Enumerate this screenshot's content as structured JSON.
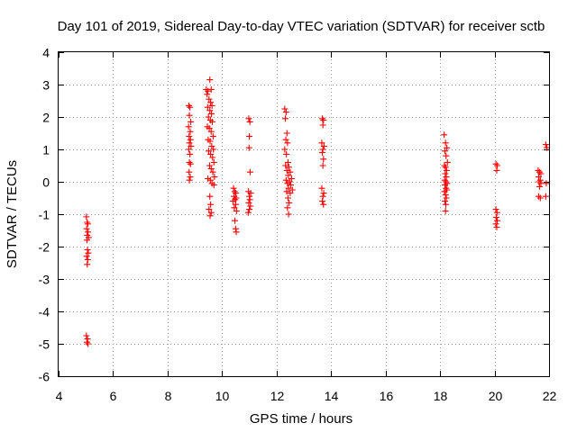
{
  "chart_data": {
    "type": "scatter",
    "title": "Day 101 of 2019, Sidereal Day-to-day VTEC variation (SDTVAR) for receiver sctb",
    "xlabel": "GPS time / hours",
    "ylabel": "SDTVAR / TECUs",
    "xlim": [
      4,
      22
    ],
    "ylim": [
      -6,
      4
    ],
    "xticks": [
      4,
      6,
      8,
      10,
      12,
      14,
      16,
      18,
      20,
      22
    ],
    "yticks": [
      -6,
      -5,
      -4,
      -3,
      -2,
      -1,
      0,
      1,
      2,
      3,
      4
    ],
    "xtick_labels": [
      "4",
      "6",
      "8",
      "10",
      "12",
      "14",
      "16",
      "18",
      "20",
      "22"
    ],
    "ytick_labels": [
      "-6",
      "-5",
      "-4",
      "-3",
      "-2",
      "-1",
      "0",
      "1",
      "2",
      "3",
      "4"
    ],
    "grid": true,
    "marker": "+",
    "color": "#ff0000",
    "series": [
      {
        "name": "SDTVAR",
        "points": [
          [
            5.02,
            -1.08
          ],
          [
            5.05,
            -1.25
          ],
          [
            5.07,
            -1.3
          ],
          [
            5.03,
            -1.45
          ],
          [
            5.08,
            -1.55
          ],
          [
            5.05,
            -1.65
          ],
          [
            5.1,
            -1.72
          ],
          [
            5.04,
            -1.8
          ],
          [
            5.06,
            -2.1
          ],
          [
            5.09,
            -2.2
          ],
          [
            5.03,
            -2.3
          ],
          [
            5.07,
            -2.4
          ],
          [
            5.05,
            -2.55
          ],
          [
            5.02,
            -4.75
          ],
          [
            5.06,
            -4.85
          ],
          [
            5.04,
            -4.95
          ],
          [
            5.08,
            -5.0
          ],
          [
            8.78,
            2.35
          ],
          [
            8.82,
            2.3
          ],
          [
            8.8,
            2.05
          ],
          [
            8.85,
            1.85
          ],
          [
            8.77,
            1.7
          ],
          [
            8.83,
            1.55
          ],
          [
            8.79,
            1.4
          ],
          [
            8.84,
            1.3
          ],
          [
            8.8,
            1.2
          ],
          [
            8.86,
            1.1
          ],
          [
            8.78,
            1.0
          ],
          [
            8.82,
            0.85
          ],
          [
            8.8,
            0.6
          ],
          [
            8.84,
            0.55
          ],
          [
            8.79,
            0.3
          ],
          [
            8.83,
            0.15
          ],
          [
            8.8,
            0.05
          ],
          [
            9.42,
            2.85
          ],
          [
            9.48,
            2.8
          ],
          [
            9.55,
            3.15
          ],
          [
            9.6,
            2.85
          ],
          [
            9.45,
            2.7
          ],
          [
            9.52,
            2.55
          ],
          [
            9.58,
            2.45
          ],
          [
            9.63,
            2.35
          ],
          [
            9.47,
            2.3
          ],
          [
            9.55,
            2.2
          ],
          [
            9.61,
            2.1
          ],
          [
            9.5,
            2.0
          ],
          [
            9.57,
            1.9
          ],
          [
            9.64,
            1.85
          ],
          [
            9.46,
            1.7
          ],
          [
            9.53,
            1.65
          ],
          [
            9.6,
            1.55
          ],
          [
            9.67,
            1.4
          ],
          [
            9.49,
            1.3
          ],
          [
            9.56,
            1.25
          ],
          [
            9.62,
            1.1
          ],
          [
            9.68,
            1.0
          ],
          [
            9.51,
            0.95
          ],
          [
            9.58,
            0.85
          ],
          [
            9.65,
            0.75
          ],
          [
            9.7,
            0.6
          ],
          [
            9.54,
            0.5
          ],
          [
            9.6,
            0.4
          ],
          [
            9.66,
            0.3
          ],
          [
            9.72,
            0.15
          ],
          [
            9.48,
            0.1
          ],
          [
            9.57,
            0.05
          ],
          [
            9.63,
            -0.05
          ],
          [
            9.7,
            -0.1
          ],
          [
            9.55,
            -0.45
          ],
          [
            9.58,
            -0.7
          ],
          [
            9.52,
            -0.85
          ],
          [
            9.6,
            -0.95
          ],
          [
            9.56,
            -1.05
          ],
          [
            10.42,
            -0.2
          ],
          [
            10.46,
            -0.3
          ],
          [
            10.5,
            -0.35
          ],
          [
            10.44,
            -0.45
          ],
          [
            10.52,
            -0.5
          ],
          [
            10.48,
            -0.55
          ],
          [
            10.4,
            -0.6
          ],
          [
            10.5,
            -0.7
          ],
          [
            10.45,
            -0.8
          ],
          [
            10.53,
            -0.9
          ],
          [
            10.47,
            -1.2
          ],
          [
            10.5,
            -1.45
          ],
          [
            10.52,
            -1.55
          ],
          [
            10.98,
            1.95
          ],
          [
            11.02,
            1.85
          ],
          [
            11.0,
            1.4
          ],
          [
            10.99,
            1.05
          ],
          [
            11.03,
            0.3
          ],
          [
            10.97,
            -0.3
          ],
          [
            11.05,
            -0.35
          ],
          [
            11.0,
            -0.45
          ],
          [
            11.02,
            -0.55
          ],
          [
            10.98,
            -0.65
          ],
          [
            11.04,
            -0.75
          ],
          [
            11.0,
            -0.85
          ],
          [
            10.96,
            -0.95
          ],
          [
            12.3,
            2.25
          ],
          [
            12.35,
            2.15
          ],
          [
            12.32,
            1.95
          ],
          [
            12.38,
            1.5
          ],
          [
            12.34,
            1.3
          ],
          [
            12.4,
            1.2
          ],
          [
            12.3,
            1.0
          ],
          [
            12.36,
            0.85
          ],
          [
            12.42,
            0.6
          ],
          [
            12.33,
            0.5
          ],
          [
            12.45,
            0.45
          ],
          [
            12.38,
            0.35
          ],
          [
            12.5,
            0.3
          ],
          [
            12.43,
            0.2
          ],
          [
            12.55,
            0.1
          ],
          [
            12.35,
            0.05
          ],
          [
            12.48,
            0.0
          ],
          [
            12.4,
            -0.05
          ],
          [
            12.52,
            -0.1
          ],
          [
            12.44,
            -0.2
          ],
          [
            12.58,
            -0.25
          ],
          [
            12.37,
            -0.3
          ],
          [
            12.5,
            -0.35
          ],
          [
            12.42,
            -0.5
          ],
          [
            12.46,
            -0.65
          ],
          [
            12.4,
            -0.8
          ],
          [
            12.44,
            -1.0
          ],
          [
            13.68,
            1.95
          ],
          [
            13.72,
            1.9
          ],
          [
            13.7,
            1.75
          ],
          [
            13.66,
            1.2
          ],
          [
            13.74,
            1.1
          ],
          [
            13.7,
            1.0
          ],
          [
            13.68,
            0.9
          ],
          [
            13.72,
            0.7
          ],
          [
            13.7,
            0.5
          ],
          [
            13.66,
            -0.2
          ],
          [
            13.73,
            -0.35
          ],
          [
            13.7,
            -0.45
          ],
          [
            13.68,
            -0.6
          ],
          [
            13.72,
            -0.7
          ],
          [
            18.15,
            1.45
          ],
          [
            18.2,
            1.2
          ],
          [
            18.25,
            1.05
          ],
          [
            18.18,
            0.95
          ],
          [
            18.22,
            0.8
          ],
          [
            18.27,
            0.6
          ],
          [
            18.16,
            0.5
          ],
          [
            18.2,
            0.45
          ],
          [
            18.24,
            0.35
          ],
          [
            18.19,
            0.25
          ],
          [
            18.23,
            0.15
          ],
          [
            18.17,
            0.05
          ],
          [
            18.21,
            0.0
          ],
          [
            18.26,
            -0.05
          ],
          [
            18.18,
            -0.1
          ],
          [
            18.22,
            -0.2
          ],
          [
            18.25,
            -0.25
          ],
          [
            18.16,
            -0.3
          ],
          [
            18.2,
            -0.4
          ],
          [
            18.23,
            -0.5
          ],
          [
            18.18,
            -0.6
          ],
          [
            18.21,
            -0.7
          ],
          [
            18.2,
            -0.9
          ],
          [
            20.05,
            0.55
          ],
          [
            20.1,
            0.5
          ],
          [
            20.08,
            0.35
          ],
          [
            20.05,
            -0.85
          ],
          [
            20.09,
            -0.95
          ],
          [
            20.06,
            -1.1
          ],
          [
            20.1,
            -1.2
          ],
          [
            20.05,
            -1.3
          ],
          [
            20.08,
            -1.4
          ],
          [
            21.6,
            0.35
          ],
          [
            21.65,
            0.3
          ],
          [
            21.7,
            0.25
          ],
          [
            21.62,
            0.15
          ],
          [
            21.68,
            0.05
          ],
          [
            21.63,
            0.0
          ],
          [
            21.7,
            -0.05
          ],
          [
            21.65,
            -0.15
          ],
          [
            21.62,
            -0.45
          ],
          [
            21.68,
            -0.5
          ],
          [
            21.88,
            1.15
          ],
          [
            21.92,
            1.05
          ],
          [
            21.9,
            -0.05
          ],
          [
            21.88,
            -0.45
          ]
        ]
      }
    ]
  }
}
